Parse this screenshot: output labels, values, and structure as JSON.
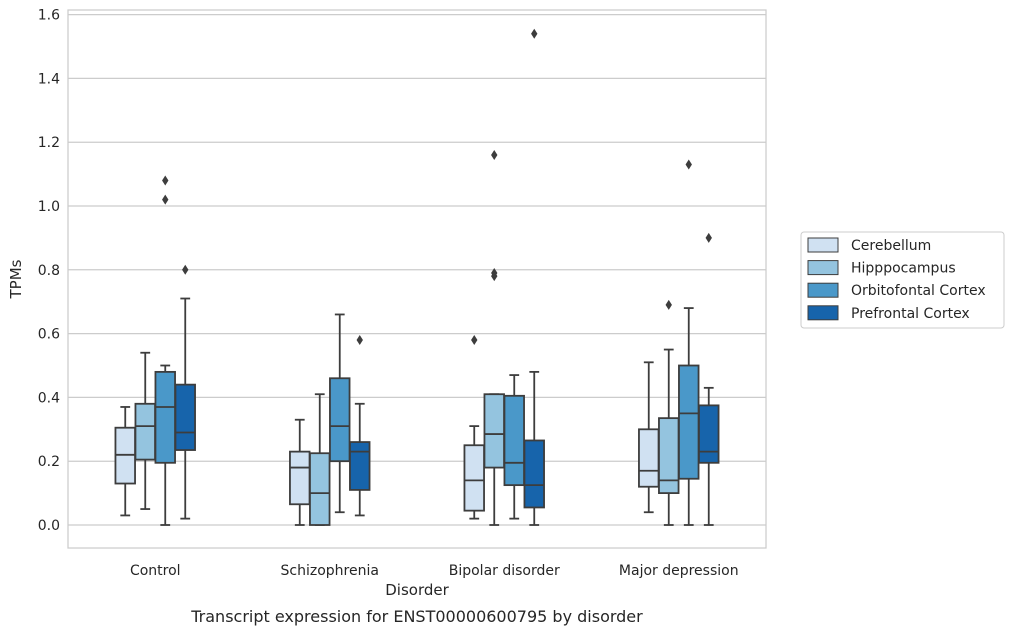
{
  "chart_data": {
    "type": "box",
    "title": "",
    "caption": "Transcript expression for ENST00000600795 by disorder",
    "xlabel": "Disorder",
    "ylabel": "TPMs",
    "ylim": [
      -0.075,
      1.62
    ],
    "yticks": [
      "0.0",
      "0.2",
      "0.4",
      "0.6",
      "0.8",
      "1.0",
      "1.2",
      "1.4",
      "1.6"
    ],
    "ytick_values": [
      0,
      0.2,
      0.4,
      0.6,
      0.8,
      1.0,
      1.2,
      1.4,
      1.6
    ],
    "grid": "horizontal",
    "legend_position": "right",
    "categories": [
      "Control",
      "Schizophrenia",
      "Bipolar disorder",
      "Major depression"
    ],
    "series": [
      {
        "name": "Cerebellum",
        "color": "#d0e1f2",
        "boxes": [
          {
            "whisker_low": 0.03,
            "q1": 0.13,
            "median": 0.22,
            "q3": 0.305,
            "whisker_high": 0.37,
            "outliers": []
          },
          {
            "whisker_low": 0.0,
            "q1": 0.065,
            "median": 0.18,
            "q3": 0.23,
            "whisker_high": 0.33,
            "outliers": []
          },
          {
            "whisker_low": 0.02,
            "q1": 0.045,
            "median": 0.14,
            "q3": 0.25,
            "whisker_high": 0.31,
            "outliers": [
              0.58
            ]
          },
          {
            "whisker_low": 0.04,
            "q1": 0.12,
            "median": 0.17,
            "q3": 0.3,
            "whisker_high": 0.51,
            "outliers": []
          }
        ]
      },
      {
        "name": "Hipppocampus",
        "color": "#94c4df",
        "boxes": [
          {
            "whisker_low": 0.05,
            "q1": 0.205,
            "median": 0.31,
            "q3": 0.38,
            "whisker_high": 0.54,
            "outliers": []
          },
          {
            "whisker_low": 0.0,
            "q1": 0.0,
            "median": 0.1,
            "q3": 0.225,
            "whisker_high": 0.41,
            "outliers": []
          },
          {
            "whisker_low": 0.0,
            "q1": 0.18,
            "median": 0.285,
            "q3": 0.41,
            "whisker_high": 0.41,
            "outliers": [
              0.78,
              0.79,
              1.16
            ]
          },
          {
            "whisker_low": 0.0,
            "q1": 0.1,
            "median": 0.14,
            "q3": 0.335,
            "whisker_high": 0.55,
            "outliers": [
              0.69
            ]
          }
        ]
      },
      {
        "name": "Orbitofontal Cortex",
        "color": "#4a98c9",
        "boxes": [
          {
            "whisker_low": 0.0,
            "q1": 0.195,
            "median": 0.37,
            "q3": 0.48,
            "whisker_high": 0.5,
            "outliers": [
              1.02,
              1.08
            ]
          },
          {
            "whisker_low": 0.04,
            "q1": 0.2,
            "median": 0.31,
            "q3": 0.46,
            "whisker_high": 0.66,
            "outliers": []
          },
          {
            "whisker_low": 0.02,
            "q1": 0.125,
            "median": 0.195,
            "q3": 0.405,
            "whisker_high": 0.47,
            "outliers": []
          },
          {
            "whisker_low": 0.0,
            "q1": 0.145,
            "median": 0.35,
            "q3": 0.5,
            "whisker_high": 0.68,
            "outliers": [
              1.13
            ]
          }
        ]
      },
      {
        "name": "Prefrontal Cortex",
        "color": "#1764ab",
        "boxes": [
          {
            "whisker_low": 0.02,
            "q1": 0.235,
            "median": 0.29,
            "q3": 0.44,
            "whisker_high": 0.71,
            "outliers": [
              0.8
            ]
          },
          {
            "whisker_low": 0.03,
            "q1": 0.11,
            "median": 0.23,
            "q3": 0.26,
            "whisker_high": 0.38,
            "outliers": [
              0.58
            ]
          },
          {
            "whisker_low": 0.0,
            "q1": 0.055,
            "median": 0.125,
            "q3": 0.265,
            "whisker_high": 0.48,
            "outliers": [
              1.54
            ]
          },
          {
            "whisker_low": 0.0,
            "q1": 0.195,
            "median": 0.23,
            "q3": 0.375,
            "whisker_high": 0.43,
            "outliers": [
              0.9
            ]
          }
        ]
      }
    ]
  }
}
